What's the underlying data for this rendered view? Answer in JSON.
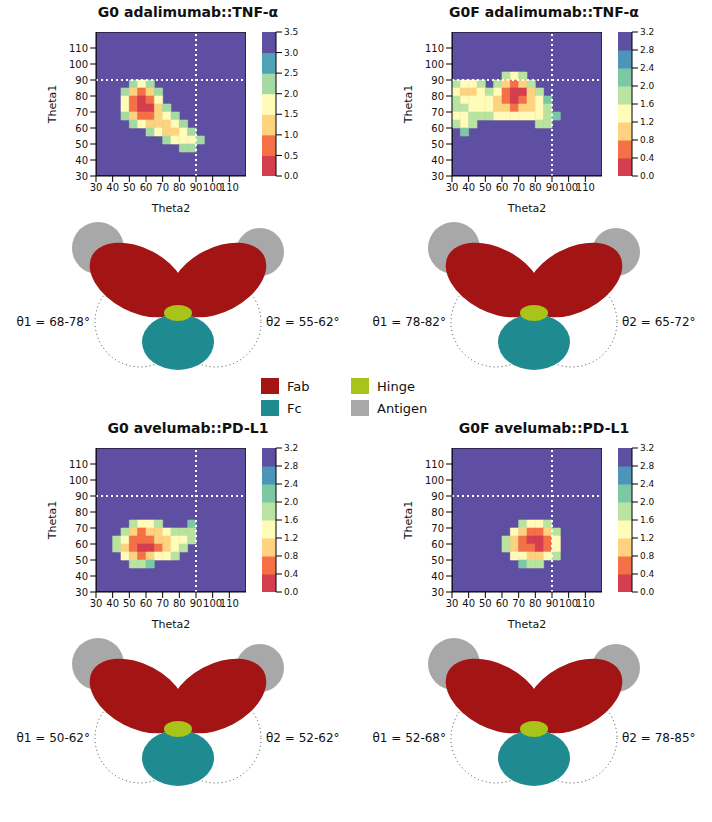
{
  "chart_data": [
    {
      "type": "heatmap",
      "title": "G0 adalimumab::TNF-α",
      "x_label": "Theta2",
      "y_label": "Theta1",
      "xlim": [
        30,
        120
      ],
      "ylim": [
        30,
        120
      ],
      "xticks": [
        30,
        40,
        50,
        60,
        70,
        80,
        90,
        100,
        110
      ],
      "yticks": [
        30,
        40,
        50,
        60,
        70,
        80,
        90,
        100,
        110
      ],
      "reference_lines": {
        "x": 90,
        "y": 90
      },
      "cell": 5,
      "cells": [
        [
          50,
          85,
          2.25
        ],
        [
          55,
          85,
          1.75
        ],
        [
          60,
          85,
          2.25
        ],
        [
          45,
          80,
          2.25
        ],
        [
          50,
          80,
          1.25
        ],
        [
          55,
          80,
          0.75
        ],
        [
          60,
          80,
          1.25
        ],
        [
          65,
          80,
          2.25
        ],
        [
          45,
          75,
          1.75
        ],
        [
          50,
          75,
          0.75
        ],
        [
          55,
          75,
          0.25
        ],
        [
          60,
          75,
          0.75
        ],
        [
          65,
          75,
          1.75
        ],
        [
          45,
          70,
          1.75
        ],
        [
          50,
          70,
          0.75
        ],
        [
          55,
          70,
          0.25
        ],
        [
          60,
          70,
          0.25
        ],
        [
          65,
          70,
          1.25
        ],
        [
          70,
          70,
          2.25
        ],
        [
          45,
          65,
          2.25
        ],
        [
          50,
          65,
          1.25
        ],
        [
          55,
          65,
          0.75
        ],
        [
          60,
          65,
          0.75
        ],
        [
          65,
          65,
          1.25
        ],
        [
          70,
          65,
          1.75
        ],
        [
          75,
          65,
          2.25
        ],
        [
          50,
          60,
          2.25
        ],
        [
          55,
          60,
          1.75
        ],
        [
          60,
          60,
          1.25
        ],
        [
          65,
          60,
          1.25
        ],
        [
          70,
          60,
          1.25
        ],
        [
          75,
          60,
          1.75
        ],
        [
          80,
          60,
          2.25
        ],
        [
          60,
          55,
          2.25
        ],
        [
          65,
          55,
          1.75
        ],
        [
          70,
          55,
          1.25
        ],
        [
          75,
          55,
          1.25
        ],
        [
          80,
          55,
          1.75
        ],
        [
          85,
          55,
          2.25
        ],
        [
          70,
          50,
          2.25
        ],
        [
          75,
          50,
          1.75
        ],
        [
          80,
          50,
          1.75
        ],
        [
          85,
          50,
          1.75
        ],
        [
          90,
          50,
          2.25
        ],
        [
          80,
          45,
          2.25
        ],
        [
          85,
          45,
          2.25
        ]
      ],
      "colorbar": {
        "range": [
          0,
          3.5
        ],
        "ticks": [
          {
            "value": 0,
            "label": "0.0"
          },
          0.5,
          {
            "value": 1,
            "label": "1.0"
          },
          1.5,
          {
            "value": 2,
            "label": "2.0"
          },
          2.5,
          {
            "value": 3,
            "label": "3.0"
          },
          3.5
        ],
        "colors": [
          "#d53e4f",
          "#f47148",
          "#fdd380",
          "#fffbb8",
          "#a5dba3",
          "#4fa3b5",
          "#5e4fa2"
        ]
      },
      "annotations": [
        "θ1 = 68-78°",
        "θ2 = 55-62°"
      ]
    },
    {
      "type": "heatmap",
      "title": "G0F adalimumab::TNF-α",
      "x_label": "Theta2",
      "y_label": "Theta1",
      "xlim": [
        30,
        120
      ],
      "ylim": [
        30,
        120
      ],
      "xticks": [
        30,
        40,
        50,
        60,
        70,
        80,
        90,
        100,
        110
      ],
      "yticks": [
        30,
        40,
        50,
        60,
        70,
        80,
        90,
        100,
        110
      ],
      "reference_lines": {
        "x": 90,
        "y": 90
      },
      "cell": 5,
      "cells": [
        [
          60,
          90,
          1.8
        ],
        [
          65,
          90,
          1.4
        ],
        [
          70,
          90,
          1.8
        ],
        [
          30,
          85,
          1.8
        ],
        [
          35,
          85,
          1.4
        ],
        [
          40,
          85,
          1.4
        ],
        [
          45,
          85,
          1.8
        ],
        [
          55,
          85,
          1.8
        ],
        [
          60,
          85,
          1.0
        ],
        [
          65,
          85,
          0.6
        ],
        [
          70,
          85,
          1.0
        ],
        [
          75,
          85,
          1.8
        ],
        [
          30,
          80,
          1.4
        ],
        [
          35,
          80,
          1.0
        ],
        [
          40,
          80,
          1.0
        ],
        [
          45,
          80,
          1.4
        ],
        [
          50,
          80,
          1.8
        ],
        [
          55,
          80,
          1.4
        ],
        [
          60,
          80,
          0.6
        ],
        [
          65,
          80,
          0.2
        ],
        [
          70,
          80,
          0.2
        ],
        [
          75,
          80,
          1.0
        ],
        [
          80,
          80,
          1.8
        ],
        [
          30,
          75,
          1.8
        ],
        [
          35,
          75,
          1.4
        ],
        [
          40,
          75,
          1.4
        ],
        [
          45,
          75,
          1.4
        ],
        [
          50,
          75,
          1.4
        ],
        [
          55,
          75,
          1.0
        ],
        [
          60,
          75,
          0.6
        ],
        [
          65,
          75,
          0.2
        ],
        [
          70,
          75,
          0.6
        ],
        [
          75,
          75,
          1.0
        ],
        [
          80,
          75,
          1.4
        ],
        [
          85,
          75,
          2.2
        ],
        [
          30,
          70,
          1.8
        ],
        [
          35,
          70,
          1.8
        ],
        [
          40,
          70,
          1.4
        ],
        [
          45,
          70,
          1.4
        ],
        [
          50,
          70,
          1.4
        ],
        [
          55,
          70,
          1.0
        ],
        [
          60,
          70,
          1.0
        ],
        [
          65,
          70,
          0.6
        ],
        [
          70,
          70,
          1.0
        ],
        [
          75,
          70,
          1.0
        ],
        [
          80,
          70,
          1.4
        ],
        [
          85,
          70,
          1.8
        ],
        [
          30,
          65,
          1.4
        ],
        [
          35,
          65,
          1.4
        ],
        [
          40,
          65,
          1.8
        ],
        [
          45,
          65,
          1.8
        ],
        [
          50,
          65,
          1.8
        ],
        [
          55,
          65,
          1.4
        ],
        [
          60,
          65,
          1.4
        ],
        [
          65,
          65,
          1.4
        ],
        [
          70,
          65,
          1.4
        ],
        [
          75,
          65,
          1.4
        ],
        [
          80,
          65,
          1.4
        ],
        [
          85,
          65,
          1.8
        ],
        [
          90,
          65,
          2.2
        ],
        [
          30,
          60,
          1.8
        ],
        [
          35,
          60,
          1.4
        ],
        [
          40,
          60,
          1.8
        ],
        [
          80,
          60,
          1.8
        ],
        [
          85,
          60,
          1.8
        ],
        [
          35,
          55,
          2.2
        ]
      ],
      "colorbar": {
        "range": [
          0,
          3.2
        ],
        "ticks": [
          {
            "value": 0,
            "label": "0.0"
          },
          0.4,
          0.8,
          1.2,
          1.6,
          {
            "value": 2,
            "label": "2.0"
          },
          2.4,
          2.8,
          3.2
        ],
        "colors": [
          "#d53e4f",
          "#f47148",
          "#fdd380",
          "#fffbb8",
          "#b9e3a0",
          "#7cc8a4",
          "#4a95b8",
          "#5e4fa2"
        ]
      },
      "annotations": [
        "θ1 = 78-82°",
        "θ2 = 65-72°"
      ]
    },
    {
      "type": "heatmap",
      "title": "G0 avelumab::PD-L1",
      "x_label": "Theta2",
      "y_label": "Theta1",
      "xlim": [
        30,
        120
      ],
      "ylim": [
        30,
        120
      ],
      "xticks": [
        30,
        40,
        50,
        60,
        70,
        80,
        90,
        100,
        110
      ],
      "yticks": [
        30,
        40,
        50,
        60,
        70,
        80,
        90,
        100,
        110
      ],
      "reference_lines": {
        "x": 90,
        "y": 90
      },
      "cell": 5,
      "cells": [
        [
          50,
          70,
          1.8
        ],
        [
          55,
          70,
          1.4
        ],
        [
          60,
          70,
          1.4
        ],
        [
          65,
          70,
          1.8
        ],
        [
          85,
          70,
          2.2
        ],
        [
          45,
          65,
          1.8
        ],
        [
          50,
          65,
          1.0
        ],
        [
          55,
          65,
          0.6
        ],
        [
          60,
          65,
          1.0
        ],
        [
          65,
          65,
          1.0
        ],
        [
          70,
          65,
          1.4
        ],
        [
          75,
          65,
          1.8
        ],
        [
          80,
          65,
          1.8
        ],
        [
          85,
          65,
          1.8
        ],
        [
          40,
          60,
          1.8
        ],
        [
          45,
          60,
          1.4
        ],
        [
          50,
          60,
          0.6
        ],
        [
          55,
          60,
          0.6
        ],
        [
          60,
          60,
          0.6
        ],
        [
          65,
          60,
          1.0
        ],
        [
          70,
          60,
          1.0
        ],
        [
          75,
          60,
          1.4
        ],
        [
          80,
          60,
          1.4
        ],
        [
          85,
          60,
          1.8
        ],
        [
          40,
          55,
          1.8
        ],
        [
          45,
          55,
          1.0
        ],
        [
          50,
          55,
          0.6
        ],
        [
          55,
          55,
          0.2
        ],
        [
          60,
          55,
          0.2
        ],
        [
          65,
          55,
          0.6
        ],
        [
          70,
          55,
          1.0
        ],
        [
          75,
          55,
          1.4
        ],
        [
          80,
          55,
          1.8
        ],
        [
          45,
          50,
          1.4
        ],
        [
          50,
          50,
          1.0
        ],
        [
          55,
          50,
          0.6
        ],
        [
          60,
          50,
          1.0
        ],
        [
          65,
          50,
          1.4
        ],
        [
          70,
          50,
          1.4
        ],
        [
          75,
          50,
          1.8
        ],
        [
          50,
          45,
          1.8
        ],
        [
          55,
          45,
          1.8
        ],
        [
          60,
          45,
          2.2
        ]
      ],
      "colorbar": {
        "range": [
          0,
          3.2
        ],
        "ticks": [
          {
            "value": 0,
            "label": "0.0"
          },
          0.4,
          0.8,
          1.2,
          1.6,
          {
            "value": 2,
            "label": "2.0"
          },
          2.4,
          2.8,
          3.2
        ],
        "colors": [
          "#d53e4f",
          "#f47148",
          "#fdd380",
          "#fffbb8",
          "#b9e3a0",
          "#7cc8a4",
          "#4a95b8",
          "#5e4fa2"
        ]
      },
      "annotations": [
        "θ1 = 50-62°",
        "θ2 = 52-62°"
      ]
    },
    {
      "type": "heatmap",
      "title": "G0F avelumab::PD-L1",
      "x_label": "Theta2",
      "y_label": "Theta1",
      "xlim": [
        30,
        120
      ],
      "ylim": [
        30,
        120
      ],
      "xticks": [
        30,
        40,
        50,
        60,
        70,
        80,
        90,
        100,
        110
      ],
      "yticks": [
        30,
        40,
        50,
        60,
        70,
        80,
        90,
        100,
        110
      ],
      "reference_lines": {
        "x": 90,
        "y": 90
      },
      "cell": 5,
      "cells": [
        [
          70,
          70,
          1.8
        ],
        [
          75,
          70,
          1.4
        ],
        [
          80,
          70,
          1.4
        ],
        [
          85,
          70,
          1.8
        ],
        [
          65,
          65,
          1.4
        ],
        [
          70,
          65,
          1.0
        ],
        [
          75,
          65,
          0.6
        ],
        [
          80,
          65,
          0.6
        ],
        [
          85,
          65,
          1.0
        ],
        [
          90,
          65,
          1.8
        ],
        [
          60,
          60,
          1.8
        ],
        [
          65,
          60,
          1.0
        ],
        [
          70,
          60,
          0.6
        ],
        [
          75,
          60,
          0.2
        ],
        [
          80,
          60,
          0.2
        ],
        [
          85,
          60,
          0.6
        ],
        [
          90,
          60,
          1.4
        ],
        [
          60,
          55,
          1.8
        ],
        [
          65,
          55,
          1.0
        ],
        [
          70,
          55,
          0.6
        ],
        [
          75,
          55,
          0.6
        ],
        [
          80,
          55,
          0.2
        ],
        [
          85,
          55,
          0.6
        ],
        [
          90,
          55,
          1.4
        ],
        [
          65,
          50,
          1.4
        ],
        [
          70,
          50,
          1.4
        ],
        [
          75,
          50,
          1.0
        ],
        [
          80,
          50,
          1.0
        ],
        [
          85,
          50,
          1.4
        ],
        [
          90,
          50,
          1.8
        ],
        [
          70,
          45,
          2.2
        ],
        [
          75,
          45,
          1.8
        ],
        [
          80,
          45,
          1.8
        ]
      ],
      "colorbar": {
        "range": [
          0,
          3.2
        ],
        "ticks": [
          {
            "value": 0,
            "label": "0.0"
          },
          0.4,
          0.8,
          1.2,
          1.6,
          {
            "value": 2,
            "label": "2.0"
          },
          2.4,
          2.8,
          3.2
        ],
        "colors": [
          "#d53e4f",
          "#f47148",
          "#fdd380",
          "#fffbb8",
          "#b9e3a0",
          "#7cc8a4",
          "#4a95b8",
          "#5e4fa2"
        ]
      },
      "annotations": [
        "θ1 = 52-68°",
        "θ2 = 78-85°"
      ]
    }
  ],
  "structure_legend": [
    {
      "name": "Fab",
      "color": "#a31515"
    },
    {
      "name": "Hinge",
      "color": "#a8c41a"
    },
    {
      "name": "Fc",
      "color": "#1f8a8f"
    },
    {
      "name": "Antigen",
      "color": "#a8a8a8"
    }
  ]
}
